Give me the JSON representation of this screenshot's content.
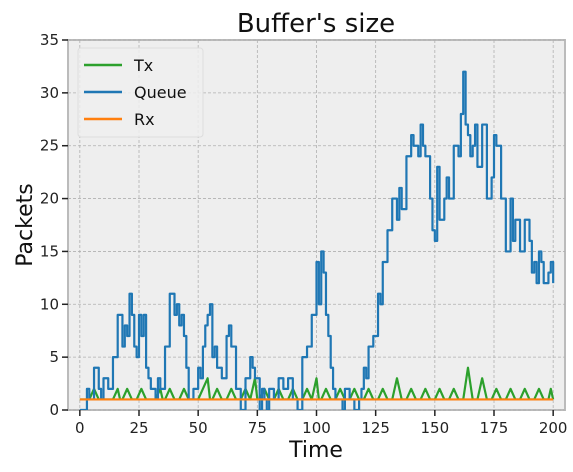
{
  "chart_data": {
    "type": "line",
    "title": "Buffer's size",
    "xlabel": "Time",
    "ylabel": "Packets",
    "xlim": [
      -5,
      205
    ],
    "ylim": [
      0,
      35
    ],
    "xticks": [
      0,
      25,
      50,
      75,
      100,
      125,
      150,
      175,
      200
    ],
    "yticks": [
      0,
      5,
      10,
      15,
      20,
      25,
      30,
      35
    ],
    "grid": true,
    "legend_position": "top-left",
    "series": [
      {
        "name": "Tx",
        "color": "#2ca02c",
        "x": [
          0,
          4,
          6,
          8,
          10,
          12,
          14,
          16,
          17,
          18,
          20,
          22,
          24,
          26,
          28,
          30,
          32,
          34,
          35,
          36,
          38,
          40,
          42,
          44,
          46,
          48,
          50,
          52,
          54,
          55,
          56,
          58,
          60,
          62,
          64,
          66,
          68,
          70,
          72,
          74,
          75,
          76,
          78,
          80,
          82,
          84,
          86,
          88,
          90,
          92,
          94,
          96,
          98,
          100,
          101,
          102,
          104,
          106,
          108,
          110,
          112,
          114,
          116,
          118,
          120,
          122,
          124,
          126,
          128,
          130,
          132,
          134,
          136,
          138,
          140,
          142,
          144,
          146,
          148,
          150,
          152,
          154,
          156,
          158,
          160,
          162,
          164,
          166,
          168,
          170,
          172,
          174,
          176,
          178,
          180,
          182,
          184,
          186,
          188,
          190,
          192,
          194,
          196,
          198,
          199,
          200
        ],
        "y": [
          1,
          1,
          2,
          1,
          1,
          1,
          1,
          2,
          1,
          1,
          2,
          1,
          1,
          2,
          1,
          1,
          1,
          2,
          1,
          1,
          2,
          1,
          1,
          2,
          1,
          1,
          1,
          2,
          3,
          1,
          1,
          2,
          1,
          1,
          2,
          1,
          1,
          2,
          1,
          3,
          1,
          1,
          2,
          1,
          1,
          2,
          1,
          1,
          2,
          1,
          1,
          2,
          1,
          3,
          1,
          1,
          2,
          1,
          1,
          2,
          1,
          1,
          2,
          1,
          1,
          2,
          1,
          1,
          2,
          1,
          1,
          3,
          1,
          1,
          2,
          1,
          1,
          2,
          1,
          1,
          2,
          1,
          1,
          2,
          1,
          1,
          4,
          1,
          1,
          3,
          1,
          1,
          2,
          1,
          1,
          2,
          1,
          1,
          2,
          1,
          1,
          2,
          1,
          1,
          2,
          1
        ]
      },
      {
        "name": "Queue",
        "color": "#1f77b4",
        "x": [
          0,
          3,
          4,
          6,
          8,
          9,
          10,
          12,
          14,
          16,
          18,
          19,
          20,
          21,
          22,
          23,
          24,
          25,
          26,
          27,
          28,
          29,
          30,
          32,
          33,
          34,
          36,
          38,
          40,
          41,
          42,
          43,
          44,
          45,
          46,
          48,
          50,
          51,
          52,
          53,
          54,
          55,
          56,
          57,
          58,
          60,
          62,
          63,
          64,
          66,
          68,
          70,
          72,
          73,
          74,
          75,
          76,
          77,
          78,
          79,
          80,
          82,
          84,
          86,
          88,
          90,
          92,
          94,
          96,
          98,
          100,
          101,
          102,
          103,
          104,
          105,
          106,
          107,
          108,
          110,
          111,
          112,
          114,
          116,
          118,
          119,
          120,
          121,
          122,
          124,
          126,
          127,
          128,
          130,
          132,
          134,
          135,
          136,
          138,
          140,
          141,
          142,
          143,
          144,
          145,
          146,
          148,
          149,
          150,
          151,
          152,
          154,
          155,
          156,
          158,
          160,
          161,
          162,
          163,
          164,
          165,
          166,
          167,
          168,
          170,
          172,
          174,
          175,
          176,
          178,
          180,
          182,
          183,
          184,
          186,
          188,
          190,
          191,
          192,
          193,
          194,
          195,
          196,
          198,
          199,
          200
        ],
        "y": [
          0,
          2,
          1,
          4,
          2,
          1,
          3,
          2,
          5,
          9,
          6,
          8,
          7,
          11,
          9,
          6,
          5,
          9,
          7,
          9,
          4,
          3,
          2,
          1,
          3,
          2,
          6,
          11,
          9,
          10,
          8,
          9,
          7,
          4,
          1,
          2,
          4,
          3,
          6,
          8,
          9,
          10,
          5,
          6,
          4,
          3,
          7,
          8,
          6,
          2,
          0,
          3,
          5,
          4,
          3,
          3,
          0,
          2,
          1,
          0,
          2,
          1,
          3,
          2,
          3,
          1,
          0,
          5,
          6,
          9,
          14,
          10,
          15,
          13,
          9,
          7,
          4,
          2,
          1,
          1,
          0,
          2,
          1,
          0,
          1,
          2,
          4,
          3,
          6,
          7,
          11,
          10,
          14,
          17,
          20,
          18,
          21,
          19,
          24,
          26,
          25,
          25,
          24,
          27,
          25,
          24,
          20,
          17,
          16,
          23,
          18,
          20,
          22,
          20,
          25,
          24,
          28,
          32,
          27,
          26,
          24,
          25,
          27,
          23,
          27,
          20,
          22,
          26,
          25,
          20,
          15,
          20,
          16,
          18,
          15,
          18,
          16,
          13,
          14,
          12,
          15,
          14,
          12,
          13,
          14,
          12
        ],
        "step": true
      },
      {
        "name": "Rx",
        "color": "#ff7f0e",
        "x": [
          0,
          200
        ],
        "y": [
          1,
          1
        ]
      }
    ]
  }
}
